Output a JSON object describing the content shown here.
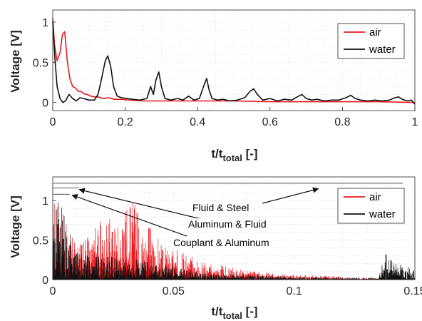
{
  "colors": {
    "air": "#e8191e",
    "water": "#111111",
    "grid": "#d9d9d9",
    "axis": "#262626"
  },
  "chart_data": [
    {
      "type": "line",
      "xlabel_main": "t/t",
      "xlabel_sub": "total",
      "xlabel_unit": " [-]",
      "ylabel": "Voltage [V]",
      "xlim": [
        0,
        1
      ],
      "ylim": [
        -0.1,
        1.15
      ],
      "xticks": [
        0,
        0.2,
        0.4,
        0.6,
        0.8,
        1
      ],
      "xtick_labels": [
        "0",
        "0.2",
        "0.4",
        "0.6",
        "0.8",
        "1"
      ],
      "yticks": [
        0,
        0.5,
        1
      ],
      "ytick_labels": [
        "0",
        "0.5",
        "1"
      ],
      "grid": "dotted",
      "legend": "top-right",
      "series": [
        {
          "name": "air",
          "color": "#e8191e",
          "x": [
            0,
            0.005,
            0.012,
            0.02,
            0.027,
            0.033,
            0.04,
            0.047,
            0.055,
            0.063,
            0.07,
            0.078,
            0.085,
            0.095,
            0.105,
            0.115,
            0.125,
            0.14,
            0.155,
            0.17,
            0.19,
            0.21,
            0.25,
            0.3,
            0.4,
            0.5,
            0.6,
            0.7,
            0.8,
            0.9,
            1.0
          ],
          "y": [
            1.05,
            0.72,
            0.52,
            0.62,
            0.85,
            0.88,
            0.52,
            0.3,
            0.2,
            0.18,
            0.14,
            0.14,
            0.11,
            0.1,
            0.08,
            0.07,
            0.07,
            0.05,
            0.06,
            0.04,
            0.04,
            0.03,
            0.02,
            0.02,
            0.02,
            0.02,
            0.01,
            0.01,
            0.01,
            0.01,
            0.0
          ]
        },
        {
          "name": "water",
          "color": "#111111",
          "x": [
            0,
            0.006,
            0.012,
            0.02,
            0.028,
            0.035,
            0.045,
            0.055,
            0.065,
            0.075,
            0.085,
            0.1,
            0.115,
            0.125,
            0.135,
            0.145,
            0.152,
            0.16,
            0.168,
            0.178,
            0.19,
            0.205,
            0.22,
            0.24,
            0.26,
            0.27,
            0.278,
            0.285,
            0.293,
            0.3,
            0.31,
            0.325,
            0.345,
            0.36,
            0.375,
            0.39,
            0.405,
            0.415,
            0.425,
            0.432,
            0.44,
            0.455,
            0.47,
            0.49,
            0.51,
            0.53,
            0.545,
            0.555,
            0.565,
            0.58,
            0.6,
            0.62,
            0.64,
            0.66,
            0.675,
            0.688,
            0.7,
            0.715,
            0.73,
            0.75,
            0.77,
            0.79,
            0.81,
            0.823,
            0.835,
            0.85,
            0.87,
            0.89,
            0.91,
            0.93,
            0.945,
            0.955,
            0.965,
            0.98,
            0.99,
            1.0
          ],
          "y": [
            1.0,
            0.55,
            0.2,
            0.05,
            0.0,
            0.02,
            0.1,
            0.05,
            0.02,
            0.06,
            0.05,
            0.03,
            0.03,
            0.1,
            0.3,
            0.52,
            0.58,
            0.45,
            0.2,
            0.08,
            0.06,
            0.05,
            0.04,
            0.03,
            0.05,
            0.2,
            0.1,
            0.28,
            0.38,
            0.2,
            0.05,
            0.03,
            0.05,
            0.03,
            0.08,
            0.03,
            0.05,
            0.18,
            0.3,
            0.15,
            0.05,
            0.03,
            0.04,
            0.02,
            0.03,
            0.06,
            0.14,
            0.17,
            0.1,
            0.03,
            0.05,
            0.02,
            0.04,
            0.03,
            0.07,
            0.1,
            0.05,
            0.03,
            0.04,
            0.02,
            0.03,
            0.03,
            0.06,
            0.09,
            0.05,
            0.03,
            0.02,
            0.03,
            0.02,
            0.03,
            0.06,
            0.07,
            0.04,
            0.02,
            0.03,
            -0.02
          ]
        }
      ]
    },
    {
      "type": "line",
      "xlabel_main": "t/t",
      "xlabel_sub": "total",
      "xlabel_unit": " [-]",
      "ylabel": "Voltage [V]",
      "xlim": [
        0,
        0.15
      ],
      "ylim": [
        0,
        1.3
      ],
      "xticks": [
        0,
        0.05,
        0.1,
        0.15
      ],
      "xtick_labels": [
        "0",
        "0.05",
        "0.1",
        "0.15"
      ],
      "yticks": [
        0,
        0.5,
        1
      ],
      "ytick_labels": [
        "0",
        "0.5",
        "1"
      ],
      "grid": "dotted",
      "legend": "top-right",
      "series": [
        {
          "name": "air",
          "color": "#e8191e",
          "envelope_x": [
            0,
            0.003,
            0.006,
            0.01,
            0.015,
            0.02,
            0.025,
            0.03,
            0.034,
            0.04,
            0.045,
            0.05,
            0.055,
            0.06,
            0.07,
            0.08,
            0.09,
            0.1,
            0.11,
            0.12,
            0.13,
            0.135,
            0.15
          ],
          "envelope_y": [
            1.0,
            0.9,
            0.75,
            0.45,
            0.55,
            0.75,
            0.85,
            0.95,
            1.0,
            0.7,
            0.45,
            0.4,
            0.35,
            0.25,
            0.18,
            0.12,
            0.08,
            0.06,
            0.05,
            0.04,
            0.03,
            0.02,
            0.0
          ]
        },
        {
          "name": "water",
          "color": "#111111",
          "envelope_x": [
            0,
            0.002,
            0.004,
            0.006,
            0.008,
            0.01,
            0.02,
            0.03,
            0.04,
            0.05,
            0.06,
            0.08,
            0.1,
            0.12,
            0.135,
            0.137,
            0.14,
            0.143,
            0.146,
            0.15
          ],
          "envelope_y": [
            1.0,
            1.0,
            0.95,
            0.8,
            0.5,
            0.35,
            0.3,
            0.28,
            0.22,
            0.18,
            0.1,
            0.06,
            0.04,
            0.03,
            0.02,
            0.36,
            0.25,
            0.22,
            0.2,
            0.15
          ]
        }
      ],
      "annotations": [
        {
          "text": "Fluid & Steel",
          "line_y": 1.22,
          "line_x": [
            0,
            0.145
          ],
          "arrow_to": [
            0.11,
            1.15
          ]
        },
        {
          "text": "Aluminum & Fluid",
          "line_y": 1.16,
          "line_x": [
            0,
            0.011
          ],
          "arrow_to": [
            0.011,
            1.14
          ]
        },
        {
          "text": "Couplant & Aluminum",
          "line_y": 1.08,
          "line_x": [
            0,
            0.007
          ],
          "arrow_to": [
            0.008,
            1.07
          ]
        }
      ]
    }
  ]
}
